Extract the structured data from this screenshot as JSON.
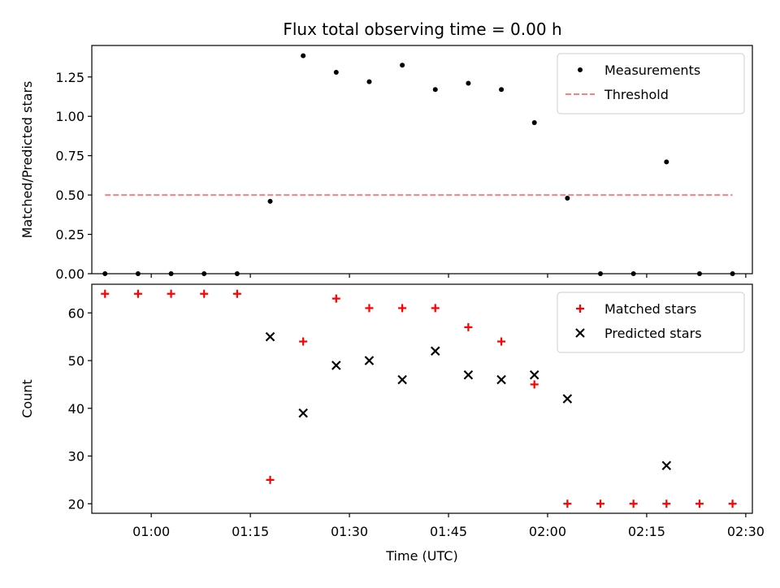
{
  "title": "Flux total observing time = 0.00 h",
  "chart_data": [
    {
      "type": "scatter",
      "ylabel": "Matched/Predicted stars",
      "ylim": [
        0.0,
        1.45
      ],
      "yticks": [
        "0.00",
        "0.25",
        "0.50",
        "0.75",
        "1.00",
        "1.25"
      ],
      "ytick_values": [
        0.0,
        0.25,
        0.5,
        0.75,
        1.0,
        1.25
      ],
      "grid": false,
      "legend": {
        "placement": "top-right"
      },
      "series": [
        {
          "name": "Measurements",
          "marker": "dot",
          "color": "#000000",
          "points": [
            [
              "00:53",
              0.0
            ],
            [
              "00:58",
              0.0
            ],
            [
              "01:03",
              0.0
            ],
            [
              "01:08",
              0.0
            ],
            [
              "01:13",
              0.0
            ],
            [
              "01:18",
              0.46
            ],
            [
              "01:23",
              1.385
            ],
            [
              "01:28",
              1.28
            ],
            [
              "01:33",
              1.22
            ],
            [
              "01:38",
              1.325
            ],
            [
              "01:43",
              1.17
            ],
            [
              "01:48",
              1.21
            ],
            [
              "01:53",
              1.17
            ],
            [
              "01:58",
              0.96
            ],
            [
              "02:03",
              0.48
            ],
            [
              "02:08",
              0.0
            ],
            [
              "02:13",
              0.0
            ],
            [
              "02:18",
              0.71
            ],
            [
              "02:23",
              0.0
            ],
            [
              "02:28",
              0.0
            ]
          ]
        },
        {
          "name": "Threshold",
          "marker": "dashed-line",
          "color": "#ff7f7f",
          "points": [
            [
              "00:53",
              0.5
            ],
            [
              "02:28",
              0.5
            ]
          ]
        }
      ]
    },
    {
      "type": "scatter",
      "xlabel": "Time (UTC)",
      "ylabel": "Count",
      "ylim": [
        18,
        66
      ],
      "yticks": [
        "20",
        "30",
        "40",
        "50",
        "60"
      ],
      "ytick_values": [
        20,
        30,
        40,
        50,
        60
      ],
      "xlim": [
        "00:51",
        "02:31"
      ],
      "xticks": [
        "01:00",
        "01:15",
        "01:30",
        "01:45",
        "02:00",
        "02:15",
        "02:30"
      ],
      "grid": false,
      "legend": {
        "placement": "top-right"
      },
      "series": [
        {
          "name": "Matched stars",
          "marker": "plus",
          "color": "#ff0000",
          "points": [
            [
              "00:53",
              64
            ],
            [
              "00:58",
              64
            ],
            [
              "01:03",
              64
            ],
            [
              "01:08",
              64
            ],
            [
              "01:13",
              64
            ],
            [
              "01:18",
              25
            ],
            [
              "01:23",
              54
            ],
            [
              "01:28",
              63
            ],
            [
              "01:33",
              61
            ],
            [
              "01:38",
              61
            ],
            [
              "01:43",
              61
            ],
            [
              "01:48",
              57
            ],
            [
              "01:53",
              54
            ],
            [
              "01:58",
              45
            ],
            [
              "02:03",
              20
            ],
            [
              "02:08",
              20
            ],
            [
              "02:13",
              20
            ],
            [
              "02:18",
              20
            ],
            [
              "02:23",
              20
            ],
            [
              "02:28",
              20
            ]
          ]
        },
        {
          "name": "Predicted stars",
          "marker": "x",
          "color": "#000000",
          "points": [
            [
              "01:18",
              55
            ],
            [
              "01:23",
              39
            ],
            [
              "01:28",
              49
            ],
            [
              "01:33",
              50
            ],
            [
              "01:38",
              46
            ],
            [
              "01:43",
              52
            ],
            [
              "01:48",
              47
            ],
            [
              "01:53",
              46
            ],
            [
              "01:58",
              47
            ],
            [
              "02:03",
              42
            ],
            [
              "02:18",
              28
            ]
          ]
        }
      ]
    }
  ]
}
